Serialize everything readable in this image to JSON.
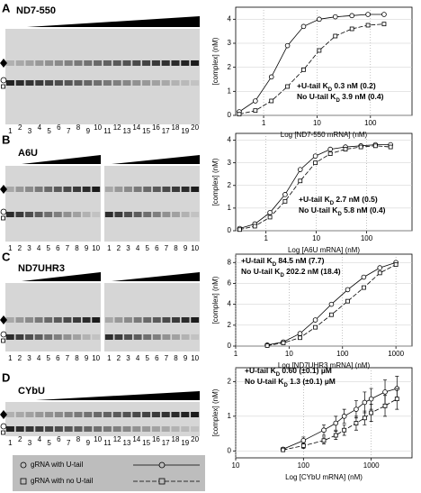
{
  "panels": [
    {
      "label": "A",
      "gel_title": "ND7-550",
      "lanes": [
        "1",
        "2",
        "3",
        "4",
        "5",
        "6",
        "7",
        "8",
        "9",
        "10",
        "11",
        "12",
        "13",
        "14",
        "15",
        "16",
        "17",
        "18",
        "19",
        "20"
      ]
    },
    {
      "label": "B",
      "gel_title": "A6U",
      "lanes": [
        "1",
        "2",
        "3",
        "4",
        "5",
        "6",
        "7",
        "8",
        "9",
        "10",
        "1",
        "2",
        "3",
        "4",
        "5",
        "6",
        "7",
        "8",
        "9",
        "10"
      ]
    },
    {
      "label": "C",
      "gel_title": "ND7UHR3",
      "lanes": [
        "1",
        "2",
        "3",
        "4",
        "5",
        "6",
        "7",
        "8",
        "9",
        "10",
        "1",
        "2",
        "3",
        "4",
        "5",
        "6",
        "7",
        "8",
        "9",
        "10"
      ]
    },
    {
      "label": "D",
      "gel_title": "CYbU",
      "lanes": [
        "1",
        "2",
        "3",
        "4",
        "5",
        "6",
        "7",
        "8",
        "9",
        "10",
        "11",
        "12",
        "13",
        "14",
        "15",
        "16",
        "17",
        "18",
        "19",
        "20"
      ]
    }
  ],
  "chart_data": [
    {
      "type": "line",
      "xscale": "log",
      "grid": true,
      "x_label": "Log [ND7-550 mRNA] (nM)",
      "y_label": "[complex] (nM)",
      "xlim": [
        0.3,
        600
      ],
      "xticks": [
        1,
        10,
        100
      ],
      "ylim": [
        0,
        4.5
      ],
      "yticks": [
        0,
        1,
        2,
        3,
        4
      ],
      "x": [
        0.35,
        0.7,
        1.4,
        2.8,
        5.6,
        11,
        22,
        45,
        90,
        180
      ],
      "series": [
        {
          "name": "gRNA with U-tail",
          "color": "#000000",
          "marker": "circle",
          "line_style": "solid",
          "values": [
            0.15,
            0.6,
            1.6,
            2.9,
            3.7,
            4.0,
            4.1,
            4.15,
            4.2,
            4.2
          ]
        },
        {
          "name": "gRNA with no U-tail",
          "color": "#000000",
          "marker": "square",
          "line_style": "dashed",
          "values": [
            0.05,
            0.2,
            0.6,
            1.2,
            1.9,
            2.7,
            3.3,
            3.6,
            3.75,
            3.8
          ]
        }
      ],
      "annotations": [
        {
          "before": "+U-tail K",
          "sub": "D",
          "after": " 0.3 nM (0.2)"
        },
        {
          "before": "No U-tail K",
          "sub": "D",
          "after": " 3.9 nM (0.4)"
        }
      ]
    },
    {
      "type": "line",
      "xscale": "log",
      "grid": true,
      "x_label": "Log [A6U mRNA] (nM)",
      "y_label": "[complex] (nM)",
      "xlim": [
        0.25,
        800
      ],
      "xticks": [
        1,
        10,
        100
      ],
      "ylim": [
        0,
        4.3
      ],
      "yticks": [
        0,
        1,
        2,
        3,
        4
      ],
      "x": [
        0.3,
        0.6,
        1.2,
        2.4,
        4.8,
        9.6,
        19,
        38,
        77,
        150,
        300
      ],
      "series": [
        {
          "color": "#000000",
          "marker": "circle",
          "line_style": "solid",
          "values": [
            0.1,
            0.3,
            0.8,
            1.6,
            2.7,
            3.3,
            3.6,
            3.7,
            3.75,
            3.8,
            3.8
          ]
        },
        {
          "color": "#000000",
          "marker": "square",
          "line_style": "dashed",
          "values": [
            0.05,
            0.2,
            0.6,
            1.3,
            2.2,
            3.0,
            3.4,
            3.6,
            3.7,
            3.75,
            3.7
          ]
        }
      ],
      "annotations": [
        {
          "before": "+U-tail K",
          "sub": "D",
          "after": " 2.7 nM (0.5)"
        },
        {
          "before": "No U-tail K",
          "sub": "D",
          "after": " 5.8 nM (0.4)"
        }
      ]
    },
    {
      "type": "line",
      "xscale": "log",
      "grid": true,
      "x_label": "Log [ND7UHR3 mRNA] (nM)",
      "y_label": "[complex] (nM)",
      "xlim": [
        1,
        2000
      ],
      "xticks": [
        1,
        10,
        100,
        1000
      ],
      "ylim": [
        0,
        8.8
      ],
      "yticks": [
        0,
        2,
        4,
        6,
        8
      ],
      "x": [
        3.9,
        7.8,
        16,
        31,
        62,
        125,
        250,
        500,
        1000
      ],
      "series": [
        {
          "color": "#000000",
          "marker": "circle",
          "line_style": "solid",
          "values": [
            0.1,
            0.4,
            1.2,
            2.5,
            4.0,
            5.4,
            6.6,
            7.5,
            8.0
          ]
        },
        {
          "color": "#000000",
          "marker": "square",
          "line_style": "dashed",
          "values": [
            0.05,
            0.3,
            0.8,
            1.8,
            3.0,
            4.3,
            5.6,
            7.0,
            7.8
          ]
        }
      ],
      "annotations": [
        {
          "before": "+U-tail K",
          "sub": "D",
          "after": " 84.5 nM (7.7)"
        },
        {
          "before": "No U-tail K",
          "sub": "D",
          "after": " 202.2 nM (18.4)"
        }
      ]
    },
    {
      "type": "line",
      "xscale": "log",
      "grid": true,
      "x_label": "Log [CYbU mRNA] (nM)",
      "y_label": "[complex] (nM)",
      "xlim": [
        10,
        4000
      ],
      "xticks": [
        10,
        100,
        1000
      ],
      "ylim": [
        -0.2,
        2.4
      ],
      "yticks": [
        0,
        1,
        2
      ],
      "x": [
        50,
        100,
        200,
        300,
        400,
        600,
        800,
        1000,
        1600,
        2400
      ],
      "series": [
        {
          "color": "#000000",
          "marker": "circle",
          "line_style": "solid",
          "values": [
            0.05,
            0.3,
            0.6,
            0.8,
            1.0,
            1.2,
            1.4,
            1.5,
            1.7,
            1.8
          ],
          "errors": [
            0.05,
            0.1,
            0.15,
            0.2,
            0.2,
            0.25,
            0.3,
            0.3,
            0.35,
            0.35
          ]
        },
        {
          "color": "#000000",
          "marker": "square",
          "line_style": "dashed",
          "values": [
            0.03,
            0.15,
            0.3,
            0.45,
            0.6,
            0.8,
            0.95,
            1.1,
            1.3,
            1.5
          ],
          "errors": [
            0.05,
            0.08,
            0.1,
            0.12,
            0.15,
            0.2,
            0.2,
            0.25,
            0.3,
            0.3
          ]
        }
      ],
      "annotations": [
        {
          "before": "+U-tail K",
          "sub": "D",
          "after": " 0.60 (±0.1) µM"
        },
        {
          "before": "No U-tail K",
          "sub": "D",
          "after": " 1.3 (±0.1) µM"
        }
      ]
    }
  ]
}
